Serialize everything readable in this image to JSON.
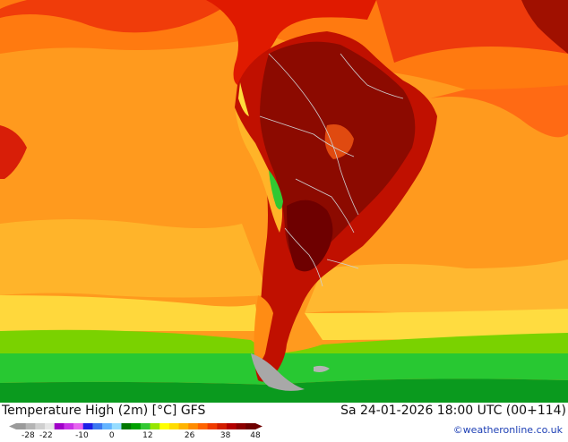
{
  "map": {
    "title": "Temperature High (2m) [°C] GFS",
    "datetime": "Sa 24-01-2026 18:00 UTC (00+114)",
    "credit": "©weatheronline.co.uk"
  },
  "legend": {
    "ticks": [
      "-28",
      "-22",
      "-10",
      "0",
      "12",
      "26",
      "38",
      "48"
    ],
    "colors": [
      "#9a9a9a",
      "#b4b4b4",
      "#cfcfcf",
      "#e6e6e6",
      "#a000c8",
      "#c832e6",
      "#e664f0",
      "#1e1ee6",
      "#3c78f0",
      "#64b4ff",
      "#96dcff",
      "#007800",
      "#00a000",
      "#32c832",
      "#96e600",
      "#ffff00",
      "#ffdc00",
      "#ffb400",
      "#ff8c00",
      "#ff6400",
      "#f03c00",
      "#d21e00",
      "#b40000",
      "#8c0000",
      "#6e0000"
    ]
  }
}
